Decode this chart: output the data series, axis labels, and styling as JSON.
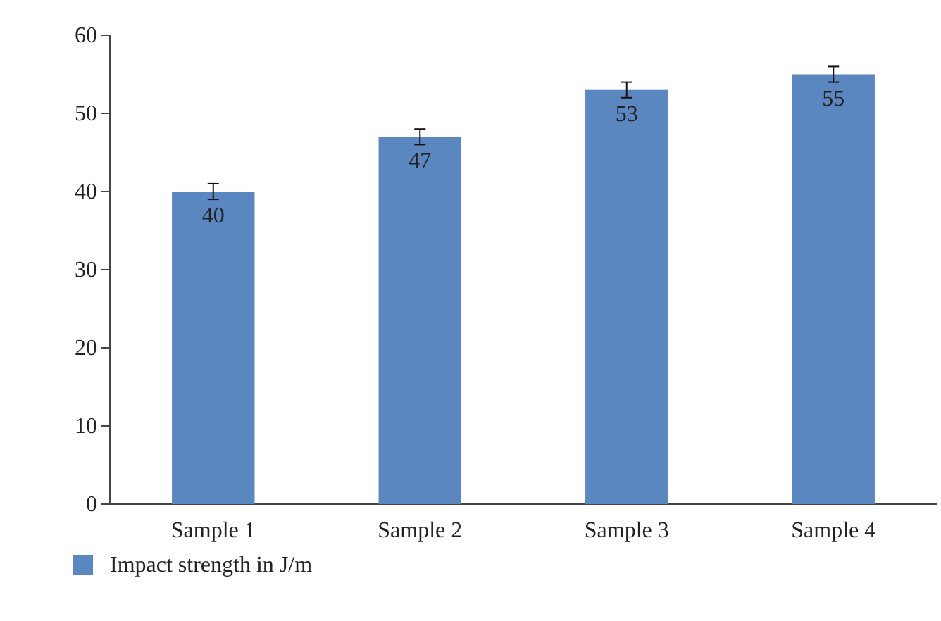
{
  "chart_data": {
    "type": "bar",
    "categories": [
      "Sample 1",
      "Sample 2",
      "Sample 3",
      "Sample 4"
    ],
    "series": [
      {
        "name": "Impact strength in J/m",
        "color": "#5b87c1",
        "values": [
          40,
          47,
          53,
          55
        ],
        "errors": [
          1,
          1,
          1,
          1
        ]
      }
    ],
    "ylim": [
      0,
      60
    ],
    "yticks": [
      0,
      10,
      20,
      30,
      40,
      50,
      60
    ],
    "grid": false,
    "legend": "bottom left",
    "data_labels": true
  }
}
